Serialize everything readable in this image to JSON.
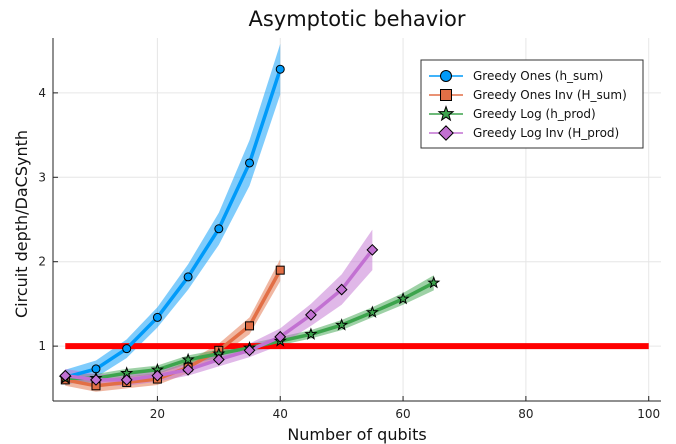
{
  "chart_data": {
    "type": "line",
    "title": "Asymptotic behavior",
    "xlabel": "Number of qubits",
    "ylabel": "Circuit depth/DaCSynth",
    "xlim": [
      3,
      102
    ],
    "ylim": [
      0.35,
      4.65
    ],
    "xticks": [
      20,
      40,
      60,
      80,
      100
    ],
    "yticks": [
      1,
      2,
      3,
      4
    ],
    "grid": true,
    "legend_position": "top-right",
    "reference_line": {
      "y": 1,
      "x_range": [
        5,
        100
      ],
      "color": "#ff0000"
    },
    "series": [
      {
        "name": "Greedy Ones (h_sum)",
        "color": "#009af9",
        "marker": "circle",
        "x": [
          5,
          10,
          15,
          20,
          25,
          30,
          35,
          40
        ],
        "y": [
          0.63,
          0.73,
          0.97,
          1.34,
          1.82,
          2.39,
          3.17,
          4.28
        ],
        "band": [
          0.09,
          0.1,
          0.11,
          0.12,
          0.15,
          0.19,
          0.27,
          0.3
        ]
      },
      {
        "name": "Greedy Ones Inv (H_sum)",
        "color": "#e26f46",
        "marker": "square",
        "x": [
          5,
          10,
          15,
          20,
          25,
          30,
          35,
          40
        ],
        "y": [
          0.6,
          0.53,
          0.57,
          0.61,
          0.75,
          0.95,
          1.24,
          1.9
        ],
        "band": [
          0.07,
          0.07,
          0.07,
          0.07,
          0.07,
          0.08,
          0.1,
          0.13
        ]
      },
      {
        "name": "Greedy Log (h_prod)",
        "color": "#3da44d",
        "marker": "star",
        "x": [
          5,
          10,
          15,
          20,
          25,
          30,
          35,
          40,
          45,
          50,
          55,
          60,
          65
        ],
        "y": [
          0.62,
          0.62,
          0.68,
          0.72,
          0.84,
          0.91,
          0.98,
          1.06,
          1.14,
          1.25,
          1.4,
          1.56,
          1.75
        ],
        "band": [
          0.05,
          0.05,
          0.05,
          0.05,
          0.05,
          0.05,
          0.05,
          0.05,
          0.05,
          0.06,
          0.06,
          0.07,
          0.09
        ]
      },
      {
        "name": "Greedy Log Inv (H_prod)",
        "color": "#c271d2",
        "marker": "diamond",
        "x": [
          5,
          10,
          15,
          20,
          25,
          30,
          35,
          40,
          45,
          50,
          55
        ],
        "y": [
          0.65,
          0.6,
          0.6,
          0.65,
          0.72,
          0.84,
          0.95,
          1.11,
          1.37,
          1.67,
          2.14
        ],
        "band": [
          0.08,
          0.07,
          0.07,
          0.07,
          0.07,
          0.08,
          0.08,
          0.1,
          0.13,
          0.18,
          0.24
        ]
      }
    ]
  }
}
